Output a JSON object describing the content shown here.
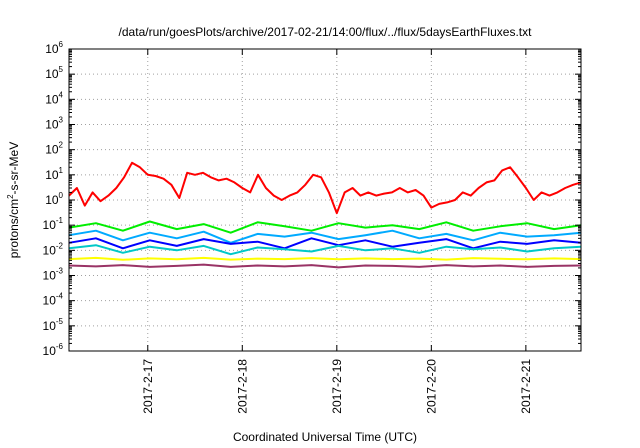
{
  "chart_data": {
    "type": "line",
    "title": "/data/run/goesPlots/archive/2017-02-21/14:00/flux/../flux/5daysEarthFluxes.txt",
    "xlabel": "Coordinated Universal Time (UTC)",
    "ylabel": "protons/cm²-s-sr-MeV",
    "ylabel_parts": {
      "pre": "protons/cm",
      "sup": "2",
      "post": "-s-sr-MeV"
    },
    "y_scale": "log",
    "ylim": [
      1e-06,
      1000000.0
    ],
    "y_ticks": [
      {
        "base": "10",
        "exp": "6"
      },
      {
        "base": "10",
        "exp": "5"
      },
      {
        "base": "10",
        "exp": "4"
      },
      {
        "base": "10",
        "exp": "3"
      },
      {
        "base": "10",
        "exp": "2"
      },
      {
        "base": "10",
        "exp": "1"
      },
      {
        "base": "10",
        "exp": "0"
      },
      {
        "base": "10",
        "exp": "-1"
      },
      {
        "base": "10",
        "exp": "-2"
      },
      {
        "base": "10",
        "exp": "-3"
      },
      {
        "base": "10",
        "exp": "-4"
      },
      {
        "base": "10",
        "exp": "-5"
      },
      {
        "base": "10",
        "exp": "-6"
      }
    ],
    "x_range": [
      "2017-02-16T04:00",
      "2017-02-21T14:00"
    ],
    "x_ticks": [
      "2017-2-17",
      "2017-2-18",
      "2017-2-19",
      "2017-2-20",
      "2017-2-21"
    ],
    "grid": true,
    "series": [
      {
        "color": "#ff0000",
        "x": [
          "2017-02-16T04:00",
          "2017-02-16T06:00",
          "2017-02-16T08:00",
          "2017-02-16T10:00",
          "2017-02-16T12:00",
          "2017-02-16T14:00",
          "2017-02-16T16:00",
          "2017-02-16T18:00",
          "2017-02-16T20:00",
          "2017-02-16T22:00",
          "2017-02-17T00:00",
          "2017-02-17T02:00",
          "2017-02-17T04:00",
          "2017-02-17T06:00",
          "2017-02-17T08:00",
          "2017-02-17T10:00",
          "2017-02-17T12:00",
          "2017-02-17T14:00",
          "2017-02-17T16:00",
          "2017-02-17T18:00",
          "2017-02-17T20:00",
          "2017-02-17T22:00",
          "2017-02-18T00:00",
          "2017-02-18T02:00",
          "2017-02-18T04:00",
          "2017-02-18T06:00",
          "2017-02-18T08:00",
          "2017-02-18T10:00",
          "2017-02-18T12:00",
          "2017-02-18T14:00",
          "2017-02-18T16:00",
          "2017-02-18T18:00",
          "2017-02-18T20:00",
          "2017-02-18T22:00",
          "2017-02-19T00:00",
          "2017-02-19T02:00",
          "2017-02-19T04:00",
          "2017-02-19T06:00",
          "2017-02-19T08:00",
          "2017-02-19T10:00",
          "2017-02-19T12:00",
          "2017-02-19T14:00",
          "2017-02-19T16:00",
          "2017-02-19T18:00",
          "2017-02-19T20:00",
          "2017-02-19T22:00",
          "2017-02-20T00:00",
          "2017-02-20T02:00",
          "2017-02-20T04:00",
          "2017-02-20T06:00",
          "2017-02-20T08:00",
          "2017-02-20T10:00",
          "2017-02-20T12:00",
          "2017-02-20T14:00",
          "2017-02-20T16:00",
          "2017-02-20T18:00",
          "2017-02-20T20:00",
          "2017-02-20T22:00",
          "2017-02-21T00:00",
          "2017-02-21T02:00",
          "2017-02-21T04:00",
          "2017-02-21T06:00",
          "2017-02-21T08:00",
          "2017-02-21T10:00",
          "2017-02-21T12:00",
          "2017-02-21T14:00"
        ],
        "y": [
          1.5,
          3,
          0.6,
          2,
          0.9,
          1.5,
          3,
          8,
          30,
          20,
          10,
          9,
          7,
          4,
          1.2,
          12,
          10,
          12,
          8,
          6,
          7,
          5,
          3,
          2,
          10,
          3,
          1.5,
          1.0,
          1.5,
          2,
          4,
          10,
          8,
          2,
          0.3,
          2,
          3,
          1.5,
          2,
          1.5,
          1.8,
          2,
          3,
          2,
          2.5,
          1.5,
          0.5,
          0.7,
          0.8,
          1.0,
          2,
          1.5,
          3,
          5,
          6,
          15,
          20,
          8,
          3,
          1.0,
          2,
          1.5,
          2,
          3,
          4,
          5
        ]
      },
      {
        "color": "#00ee00",
        "y": [
          0.08,
          0.12,
          0.06,
          0.14,
          0.07,
          0.11,
          0.05,
          0.13,
          0.09,
          0.06,
          0.12,
          0.08,
          0.1,
          0.07,
          0.13,
          0.06,
          0.09,
          0.12,
          0.07,
          0.1
        ]
      },
      {
        "color": "#00aaff",
        "y": [
          0.04,
          0.06,
          0.025,
          0.05,
          0.03,
          0.055,
          0.02,
          0.045,
          0.035,
          0.05,
          0.028,
          0.04,
          0.06,
          0.03,
          0.045,
          0.025,
          0.05,
          0.035,
          0.04,
          0.05
        ]
      },
      {
        "color": "#0000ff",
        "y": [
          0.02,
          0.03,
          0.012,
          0.025,
          0.015,
          0.028,
          0.018,
          0.022,
          0.012,
          0.03,
          0.016,
          0.025,
          0.014,
          0.02,
          0.028,
          0.012,
          0.022,
          0.018,
          0.025,
          0.02
        ]
      },
      {
        "color": "#00c8c8",
        "y": [
          0.012,
          0.016,
          0.008,
          0.014,
          0.01,
          0.015,
          0.007,
          0.013,
          0.011,
          0.009,
          0.015,
          0.01,
          0.012,
          0.008,
          0.014,
          0.011,
          0.013,
          0.009,
          0.012,
          0.014
        ]
      },
      {
        "color": "#ffff00",
        "y": [
          0.0045,
          0.005,
          0.0042,
          0.0048,
          0.0044,
          0.005,
          0.0043,
          0.0047,
          0.0045,
          0.0049,
          0.0044,
          0.0048,
          0.0045,
          0.0047,
          0.0043,
          0.0049,
          0.0046,
          0.0044,
          0.0048,
          0.0045
        ]
      },
      {
        "color": "#993366",
        "y": [
          0.0025,
          0.0023,
          0.0026,
          0.0022,
          0.0024,
          0.0027,
          0.0022,
          0.0025,
          0.0023,
          0.0026,
          0.0021,
          0.0025,
          0.0024,
          0.0022,
          0.0026,
          0.0023,
          0.0025,
          0.0022,
          0.0024,
          0.0025
        ]
      }
    ]
  }
}
